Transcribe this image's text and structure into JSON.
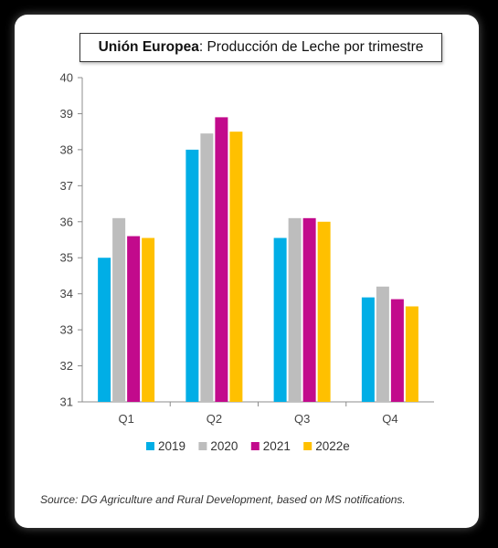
{
  "title": {
    "bold": "Unión Europea",
    "rest": ": Producción de Leche por trimestre"
  },
  "source": "Source: DG Agriculture and Rural Development, based on MS notifications.",
  "chart_data": {
    "type": "bar",
    "categories": [
      "Q1",
      "Q2",
      "Q3",
      "Q4"
    ],
    "series": [
      {
        "name": "2019",
        "color": "#00aee6",
        "values": [
          35.0,
          38.0,
          35.55,
          33.9
        ]
      },
      {
        "name": "2020",
        "color": "#bdbdbd",
        "values": [
          36.1,
          38.45,
          36.1,
          34.2
        ]
      },
      {
        "name": "2021",
        "color": "#c20a8c",
        "values": [
          35.6,
          38.9,
          36.1,
          33.85
        ]
      },
      {
        "name": "2022e",
        "color": "#ffc000",
        "values": [
          35.55,
          38.5,
          36.0,
          33.65
        ]
      }
    ],
    "ylim": [
      31,
      40
    ],
    "yticks": [
      31,
      32,
      33,
      34,
      35,
      36,
      37,
      38,
      39,
      40
    ],
    "grid": false,
    "legend_position": "bottom-center"
  }
}
